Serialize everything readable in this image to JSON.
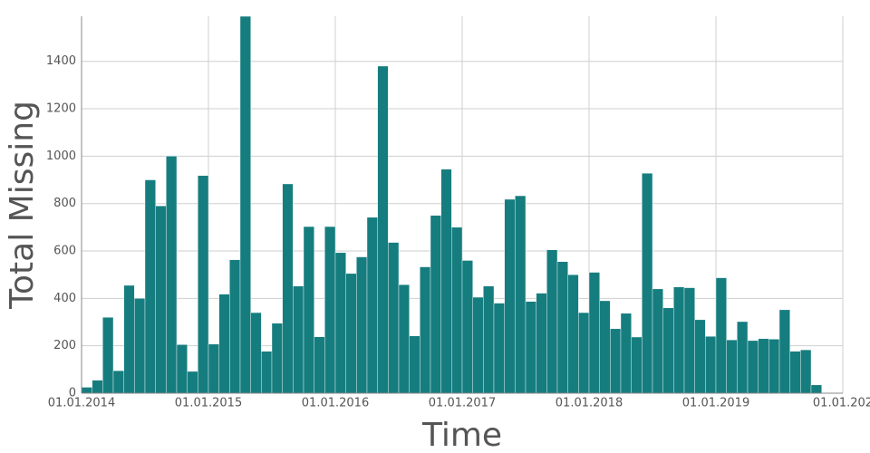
{
  "chart_data": {
    "type": "histogram",
    "x_label": "Time",
    "y_label": "Total Missing",
    "color": "#167d7f",
    "grid": true,
    "bins": [
      0,
      1,
      2,
      3,
      4,
      5,
      6,
      7,
      8,
      9,
      10,
      11,
      12,
      13,
      14,
      15,
      16,
      17,
      18,
      19,
      20,
      21,
      22,
      23,
      24,
      25,
      26,
      27,
      28,
      29,
      30,
      31,
      32,
      33,
      34,
      35,
      36,
      37,
      38,
      39,
      40,
      41,
      42,
      43,
      44,
      45,
      46,
      47,
      48,
      49,
      50,
      51,
      52,
      53,
      54,
      55,
      56,
      57,
      58,
      59,
      60,
      61,
      62,
      63,
      64,
      65,
      66,
      67,
      68,
      69,
      70
    ],
    "values": [
      25,
      55,
      320,
      95,
      455,
      400,
      900,
      790,
      1000,
      205,
      92,
      918,
      207,
      418,
      563,
      1590,
      340,
      177,
      295,
      883,
      452,
      703,
      238,
      703,
      593,
      505,
      575,
      742,
      1380,
      636,
      458,
      242,
      533,
      750,
      945,
      700,
      560,
      405,
      452,
      380,
      818,
      833,
      387,
      422,
      605,
      555,
      500,
      340,
      510,
      390,
      272,
      337,
      237,
      928,
      440,
      360,
      448,
      445,
      310,
      240,
      487,
      225,
      302,
      222,
      230,
      228,
      352,
      177,
      183,
      35
    ],
    "xlim": [
      0,
      72
    ],
    "xticks": [
      {
        "value": 0,
        "label": "01.01.2014"
      },
      {
        "value": 12,
        "label": "01.01.2015"
      },
      {
        "value": 24,
        "label": "01.01.2016"
      },
      {
        "value": 36,
        "label": "01.01.2017"
      },
      {
        "value": 48,
        "label": "01.01.2018"
      },
      {
        "value": 60,
        "label": "01.01.2019"
      },
      {
        "value": 72,
        "label": "01.01.202"
      }
    ],
    "ylim": [
      0,
      1590
    ],
    "yticks": [
      0,
      200,
      400,
      600,
      800,
      1000,
      1200,
      1400
    ]
  }
}
